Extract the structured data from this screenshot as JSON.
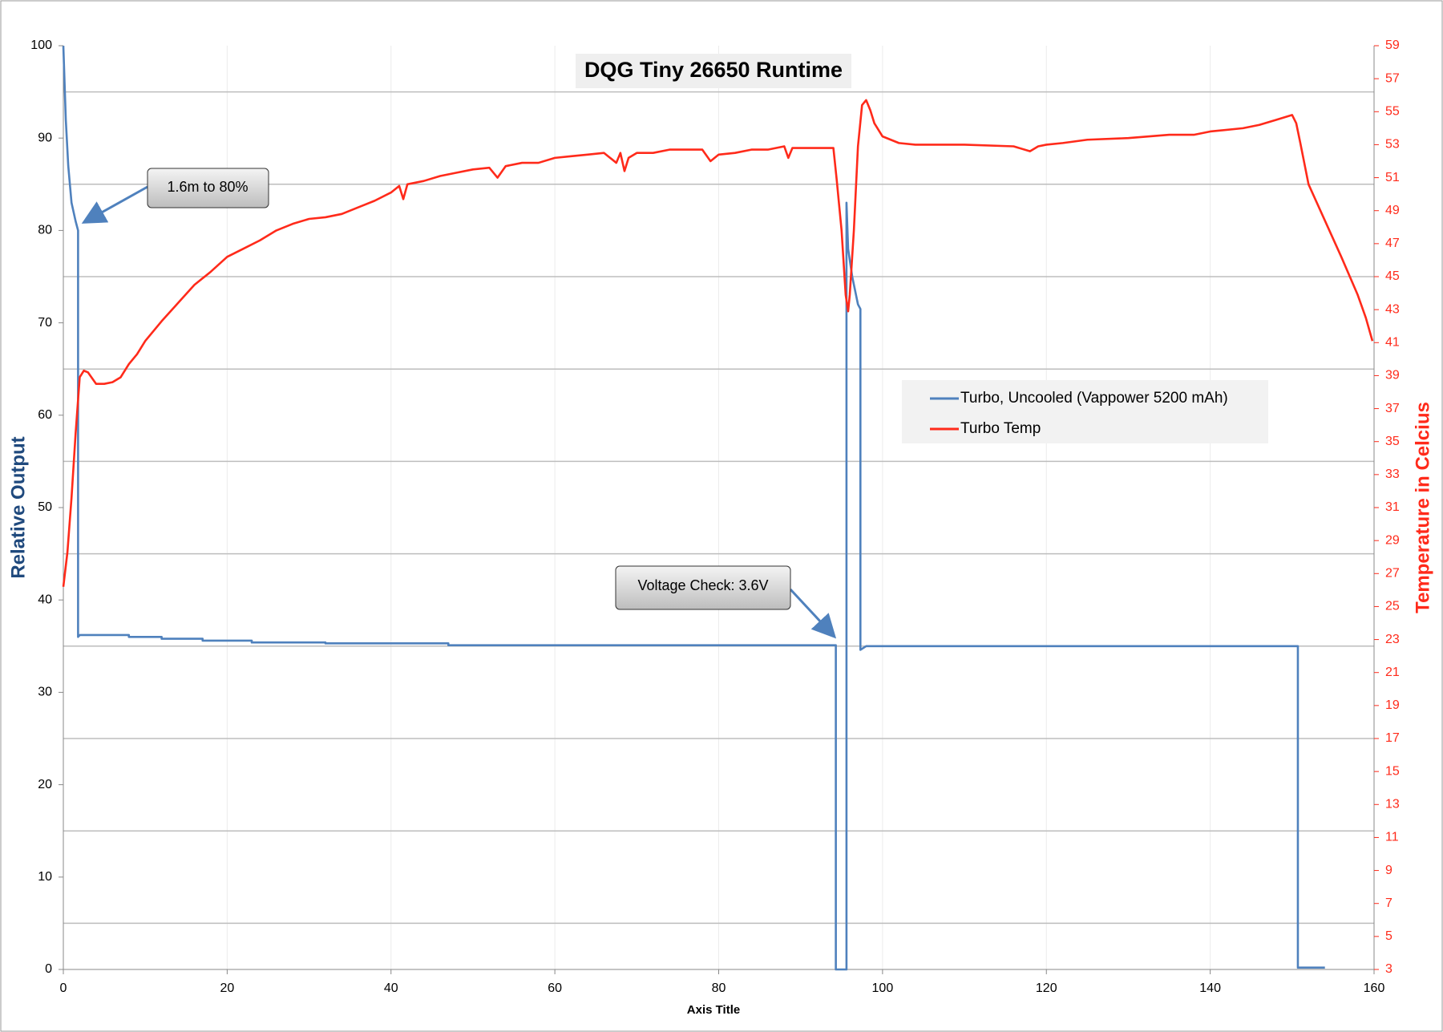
{
  "chart_data": {
    "type": "line",
    "title": "DQG Tiny 26650 Runtime",
    "xlabel": "Axis Title",
    "ylabel": "Relative Output",
    "y2label": "Temperature in Celcius",
    "xlim": [
      0,
      160
    ],
    "xticks": [
      0,
      20,
      40,
      60,
      80,
      100,
      120,
      140,
      160
    ],
    "ylim": [
      0,
      100
    ],
    "yticks": [
      0,
      10,
      20,
      30,
      40,
      50,
      60,
      70,
      80,
      90,
      100
    ],
    "y2lim": [
      3,
      59
    ],
    "y2ticks": [
      3,
      5,
      7,
      9,
      11,
      13,
      15,
      17,
      19,
      21,
      23,
      25,
      27,
      29,
      31,
      33,
      35,
      37,
      39,
      41,
      43,
      45,
      47,
      49,
      51,
      53,
      55,
      57,
      59
    ],
    "ygrid": [
      5,
      15,
      25,
      35,
      45,
      55,
      65,
      75,
      85,
      95
    ],
    "grid": true,
    "legend": "center-right",
    "annotations": [
      "1.6m to 80%",
      "Voltage Check: 3.6V"
    ],
    "series": [
      {
        "name": "Turbo, Uncooled (Vappower 5200 mAh)",
        "color": "#4f81bd",
        "x": [
          0,
          0.3,
          0.6,
          1,
          1.5,
          1.8,
          1.8,
          2,
          8,
          8,
          12,
          12,
          17,
          17,
          23,
          23,
          32,
          32,
          47,
          47,
          94.3,
          94.3,
          95.6,
          95.6,
          95.8,
          96.3,
          97,
          97.3,
          97.3,
          98,
          150,
          150.7,
          150.7,
          154
        ],
        "values": [
          100,
          92,
          87,
          83,
          81,
          80,
          36,
          36.2,
          36.2,
          36,
          36,
          35.8,
          35.8,
          35.6,
          35.6,
          35.4,
          35.4,
          35.3,
          35.3,
          35.1,
          35.1,
          0,
          0,
          83,
          78,
          75,
          72,
          71.5,
          34.6,
          35,
          35,
          35,
          0.2,
          0.2
        ]
      },
      {
        "name": "Turbo Temp",
        "color": "#ff2a1a",
        "axis": "y2",
        "x": [
          0,
          0.5,
          1,
          1.5,
          2,
          2.5,
          3,
          4,
          5,
          6,
          7,
          8,
          9,
          10,
          12,
          14,
          16,
          18,
          20,
          22,
          24,
          26,
          28,
          30,
          32,
          34,
          36,
          38,
          40,
          41,
          41.5,
          42,
          44,
          46,
          48,
          50,
          52,
          53,
          54,
          56,
          58,
          60,
          62,
          64,
          66,
          67.5,
          68,
          68.5,
          69,
          70,
          72,
          74,
          78,
          79,
          80,
          82,
          84,
          86,
          88,
          88.5,
          89,
          94,
          94.4,
          95,
          95.5,
          95.8,
          96,
          96.5,
          97,
          97.5,
          98,
          98.5,
          99,
          100,
          101,
          102,
          104,
          110,
          116,
          118,
          119,
          120,
          122,
          125,
          130,
          135,
          138,
          140,
          144,
          146,
          148,
          150,
          150.5,
          151,
          152,
          154,
          156,
          158,
          159,
          159.8
        ],
        "values": [
          26.2,
          28.3,
          31.6,
          35.5,
          38.9,
          39.3,
          39.2,
          38.5,
          38.5,
          38.6,
          38.9,
          39.7,
          40.3,
          41.1,
          42.3,
          43.4,
          44.5,
          45.3,
          46.2,
          46.7,
          47.2,
          47.8,
          48.2,
          48.5,
          48.6,
          48.8,
          49.2,
          49.6,
          50.1,
          50.5,
          49.7,
          50.6,
          50.8,
          51.1,
          51.3,
          51.5,
          51.6,
          51,
          51.7,
          51.9,
          51.9,
          52.2,
          52.3,
          52.4,
          52.5,
          51.9,
          52.5,
          51.4,
          52.2,
          52.5,
          52.5,
          52.7,
          52.7,
          52,
          52.4,
          52.5,
          52.7,
          52.7,
          52.9,
          52.2,
          52.8,
          52.8,
          50.9,
          47.8,
          43.9,
          42.9,
          43.9,
          47.8,
          52.9,
          55.4,
          55.7,
          55.1,
          54.3,
          53.5,
          53.3,
          53.1,
          53,
          53,
          52.9,
          52.6,
          52.9,
          53,
          53.1,
          53.3,
          53.4,
          53.6,
          53.6,
          53.8,
          54,
          54.2,
          54.5,
          54.8,
          54.3,
          53.1,
          50.6,
          48.4,
          46.2,
          43.9,
          42.5,
          41.1
        ]
      }
    ]
  }
}
